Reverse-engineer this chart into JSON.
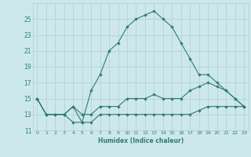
{
  "xlabel": "Humidex (Indice chaleur)",
  "x_values": [
    0,
    1,
    2,
    3,
    4,
    5,
    6,
    7,
    8,
    9,
    10,
    11,
    12,
    13,
    14,
    15,
    16,
    17,
    18,
    19,
    20,
    21,
    22,
    23
  ],
  "line1": [
    15,
    13,
    13,
    13,
    12,
    12,
    16,
    18,
    21,
    22,
    24,
    25,
    25.5,
    26,
    25,
    24,
    22,
    20,
    18,
    18,
    17,
    16,
    15,
    14
  ],
  "line2": [
    15,
    13,
    13,
    13,
    14,
    13,
    13,
    14,
    14,
    14,
    15,
    15,
    15,
    15.5,
    15,
    15,
    15,
    16,
    16.5,
    17,
    16.5,
    16,
    15,
    14
  ],
  "line3": [
    15,
    13,
    13,
    13,
    14,
    12,
    12,
    13,
    13,
    13,
    13,
    13,
    13,
    13,
    13,
    13,
    13,
    13,
    13.5,
    14,
    14,
    14,
    14,
    14
  ],
  "line_color": "#2e7d6e",
  "bg_color": "#cde8ec",
  "grid_color": "#b0cdd2",
  "ylim": [
    11,
    27
  ],
  "yticks": [
    11,
    13,
    15,
    17,
    19,
    21,
    23,
    25
  ],
  "xlim": [
    -0.5,
    23.5
  ],
  "xticks": [
    0,
    1,
    2,
    3,
    4,
    5,
    6,
    7,
    8,
    9,
    10,
    11,
    12,
    13,
    14,
    15,
    16,
    17,
    18,
    19,
    20,
    21,
    22,
    23
  ]
}
